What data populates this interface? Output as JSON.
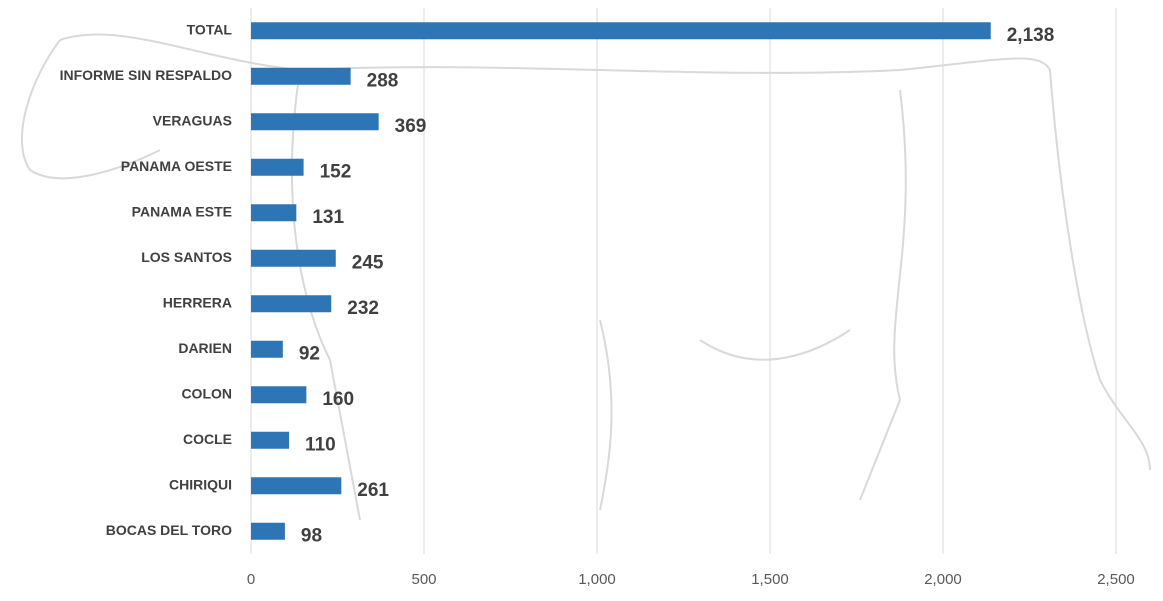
{
  "chart_data": {
    "type": "bar",
    "orientation": "horizontal",
    "color": "#2e75b6",
    "grid": true,
    "categories": [
      "TOTAL",
      "INFORME SIN RESPALDO",
      "VERAGUAS",
      "PANAMA OESTE",
      "PANAMA ESTE",
      "LOS SANTOS",
      "HERRERA",
      "DARIEN",
      "COLON",
      "COCLE",
      "CHIRIQUI",
      "BOCAS DEL TORO"
    ],
    "values": [
      2138,
      288,
      369,
      152,
      131,
      245,
      232,
      92,
      160,
      110,
      261,
      98
    ],
    "value_labels": [
      "2,138",
      "288",
      "369",
      "152",
      "131",
      "245",
      "232",
      "92",
      "160",
      "110",
      "261",
      "98"
    ],
    "xlim": [
      0,
      2500
    ],
    "xticks": [
      0,
      500,
      {
        "value": 1000,
        "label": "1,000"
      },
      {
        "value": 1500,
        "label": "1,500"
      },
      {
        "value": 2000,
        "label": "2,000"
      },
      {
        "value": 2500,
        "label": "2,500"
      }
    ]
  }
}
